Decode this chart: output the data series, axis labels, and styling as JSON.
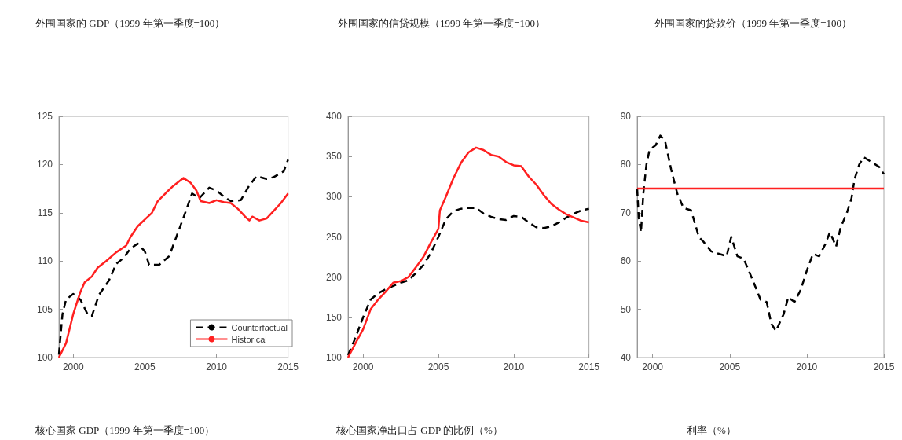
{
  "chart_data": [
    {
      "type": "line",
      "title": "外围国家的 GDP（1999 年第一季度=100）",
      "annotations": [
        "核心国家 GDP（1999 年第一季度=100）"
      ],
      "xlim": [
        1999,
        2015
      ],
      "xticks": [
        2000,
        2005,
        2010,
        2015
      ],
      "ylim": [
        100,
        125
      ],
      "yticks": [
        100,
        105,
        110,
        115,
        120,
        125
      ],
      "grid": false,
      "legend": "bottom right",
      "marker": "none",
      "series": [
        {
          "name": "Counterfactual",
          "color": "#000000",
          "line_style": "dashed",
          "x": [
            1999,
            1999.25,
            1999.5,
            2000,
            2000.5,
            2001,
            2001.3,
            2001.8,
            2002.5,
            2003,
            2003.5,
            2004,
            2004.5,
            2005,
            2005.3,
            2006,
            2006.7,
            2007.2,
            2007.7,
            2008.3,
            2008.8,
            2009.5,
            2010,
            2010.5,
            2011,
            2011.7,
            2012.2,
            2012.8,
            2013.5,
            2014,
            2014.7,
            2015
          ],
          "values": [
            100.3,
            104.5,
            106,
            106.6,
            106,
            104.5,
            104.3,
            106.5,
            108,
            109.7,
            110.3,
            111.3,
            111.8,
            111,
            109.6,
            109.6,
            110.5,
            112.5,
            114.5,
            117,
            116.5,
            117.6,
            117.3,
            116.7,
            116.2,
            116.3,
            117.6,
            118.8,
            118.5,
            118.7,
            119.3,
            120.5
          ]
        },
        {
          "name": "Historical",
          "color": "#ff2020",
          "line_style": "solid",
          "x": [
            1999,
            1999.5,
            2000,
            2000.5,
            2000.8,
            2001.3,
            2001.7,
            2002.3,
            2003,
            2003.7,
            2004,
            2004.5,
            2005,
            2005.5,
            2005.9,
            2006.5,
            2007,
            2007.7,
            2008.2,
            2008.6,
            2008.9,
            2009.5,
            2010,
            2010.5,
            2011,
            2011.5,
            2012,
            2012.3,
            2012.5,
            2013,
            2013.5,
            2014,
            2014.5,
            2015
          ],
          "values": [
            100,
            101.5,
            104.5,
            106.8,
            107.8,
            108.4,
            109.3,
            110,
            110.9,
            111.6,
            112.5,
            113.6,
            114.3,
            115,
            116.2,
            117.1,
            117.8,
            118.6,
            118.1,
            117.3,
            116.2,
            116,
            116.3,
            116.1,
            116,
            115.4,
            114.6,
            114.2,
            114.6,
            114.2,
            114.4,
            115.2,
            116,
            117
          ]
        }
      ]
    },
    {
      "type": "line",
      "title": "外围国家的信贷规模（1999 年第一季度=100）",
      "annotations": [
        "核心国家净出口占 GDP 的比例（%）"
      ],
      "xlim": [
        1999,
        2015
      ],
      "xticks": [
        2000,
        2005,
        2010,
        2015
      ],
      "ylim": [
        100,
        400
      ],
      "yticks": [
        100,
        150,
        200,
        250,
        300,
        350,
        400
      ],
      "grid": false,
      "legend": false,
      "marker": "none",
      "series": [
        {
          "color": "#000000",
          "line_style": "dashed",
          "x": [
            1999,
            1999.5,
            2000,
            2000.5,
            2001,
            2001.5,
            2002,
            2002.5,
            2003,
            2003.5,
            2004,
            2004.5,
            2005,
            2005.5,
            2006,
            2006.5,
            2007,
            2007.5,
            2008,
            2008.5,
            2009,
            2009.5,
            2010,
            2010.5,
            2011,
            2011.5,
            2012,
            2012.5,
            2013,
            2013.5,
            2014,
            2014.5,
            2015
          ],
          "values": [
            103,
            125,
            150,
            172,
            180,
            185,
            189,
            193,
            196,
            205,
            215,
            230,
            250,
            272,
            282,
            285,
            286,
            286,
            279,
            275,
            272,
            271,
            276,
            275,
            268,
            262,
            261,
            263,
            268,
            274,
            279,
            283,
            285
          ]
        },
        {
          "color": "#ff2020",
          "line_style": "solid",
          "x": [
            1999,
            1999.5,
            2000,
            2000.5,
            2001,
            2001.5,
            2002,
            2002.5,
            2003,
            2003.5,
            2004,
            2004.5,
            2005,
            2005.1,
            2005.5,
            2006,
            2006.5,
            2007,
            2007.5,
            2008,
            2008.5,
            2009,
            2009.5,
            2010,
            2010.5,
            2011,
            2011.5,
            2012,
            2012.5,
            2013,
            2013.5,
            2014,
            2014.5,
            2015
          ],
          "values": [
            100,
            118,
            135,
            160,
            172,
            182,
            193,
            195,
            200,
            212,
            225,
            243,
            260,
            283,
            300,
            323,
            342,
            355,
            361,
            358,
            352,
            350,
            343,
            339,
            338,
            325,
            315,
            302,
            291,
            284,
            278,
            274,
            270,
            268
          ]
        }
      ]
    },
    {
      "type": "line",
      "title": "外围国家的贷款价（1999 年第一季度=100）",
      "annotations": [
        "利率（%）"
      ],
      "xlim": [
        1999,
        2015
      ],
      "xticks": [
        2000,
        2005,
        2010,
        2015
      ],
      "ylim": [
        40,
        90
      ],
      "yticks": [
        40,
        50,
        60,
        70,
        80,
        90
      ],
      "grid": false,
      "legend": false,
      "marker": "none",
      "series": [
        {
          "color": "#000000",
          "line_style": "dashed",
          "x": [
            1999,
            1999.1,
            1999.25,
            1999.4,
            1999.6,
            1999.8,
            2000.2,
            2000.5,
            2000.8,
            2001.2,
            2001.6,
            2002,
            2002.5,
            2003,
            2003.3,
            2003.8,
            2004.3,
            2004.8,
            2005.1,
            2005.5,
            2005.9,
            2006.5,
            2007,
            2007.4,
            2007.7,
            2008,
            2008.5,
            2008.8,
            2009.2,
            2009.6,
            2010,
            2010.4,
            2010.8,
            2011.2,
            2011.5,
            2011.9,
            2012.2,
            2012.6,
            2012.9,
            2013.1,
            2013.4,
            2013.7,
            2014.2,
            2014.7,
            2015
          ],
          "values": [
            75,
            69,
            66,
            74,
            80,
            83,
            84,
            86,
            85,
            79,
            74,
            71,
            70.5,
            65,
            64,
            62,
            61.5,
            61,
            65,
            61,
            60.5,
            56,
            52,
            51.5,
            47,
            45.5,
            49,
            52.5,
            51.5,
            54,
            58,
            61.5,
            61,
            63.5,
            66,
            63,
            67,
            70,
            73,
            77,
            80,
            81.5,
            80.5,
            79.5,
            78
          ]
        },
        {
          "color": "#ff2020",
          "line_style": "solid",
          "x": [
            1999,
            2015
          ],
          "values": [
            75,
            75
          ]
        }
      ]
    }
  ]
}
